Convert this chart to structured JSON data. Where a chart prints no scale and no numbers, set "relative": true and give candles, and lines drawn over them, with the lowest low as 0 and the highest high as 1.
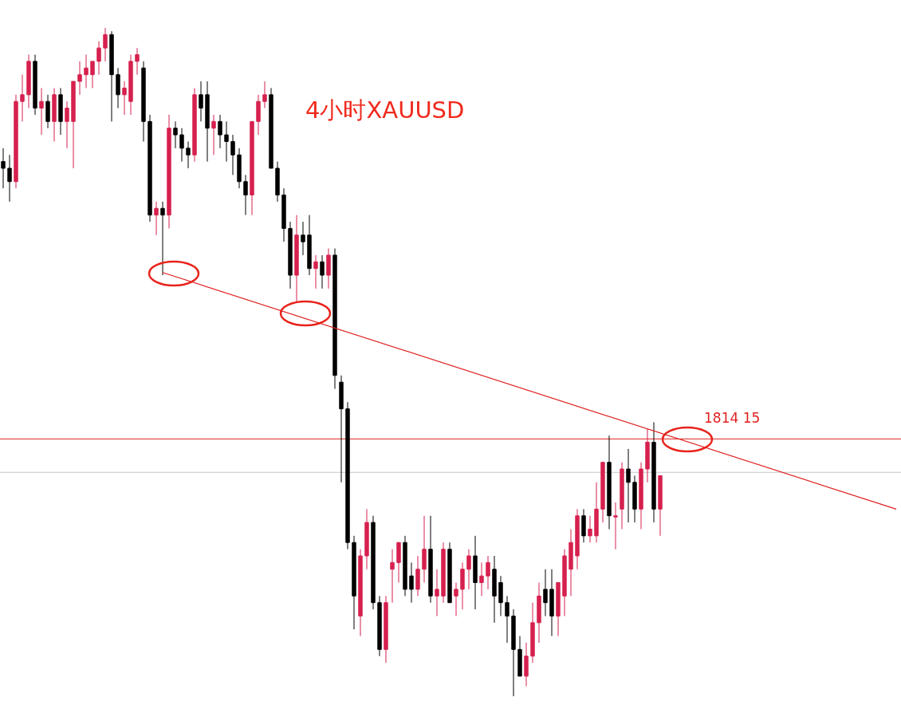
{
  "chart_data": {
    "type": "candlestick",
    "title": "4小时XAUUSD",
    "relative": true,
    "categories": [
      null,
      null,
      null,
      null,
      null,
      null,
      null,
      null,
      null,
      null,
      null,
      null,
      null,
      null,
      null,
      null,
      null,
      null,
      null,
      null,
      null,
      null,
      null,
      null,
      null,
      null,
      null,
      null,
      null,
      null,
      null,
      null,
      null,
      null,
      null,
      null,
      null,
      null,
      null,
      null,
      null,
      null,
      null,
      null,
      null,
      null,
      null,
      null,
      null,
      null,
      null,
      null,
      null,
      null,
      null,
      null,
      null,
      null,
      null,
      null,
      null,
      null,
      null,
      null,
      null,
      null,
      null,
      null,
      null,
      null,
      null,
      null,
      null,
      null,
      null,
      null,
      null,
      null,
      null,
      null,
      null,
      null,
      null,
      null,
      null,
      null,
      null,
      null,
      null,
      null,
      null,
      null,
      null,
      null,
      null,
      null,
      null,
      null,
      null,
      null,
      null,
      null,
      null,
      null,
      null,
      null,
      null,
      null,
      null,
      null,
      null,
      null,
      null,
      null,
      null,
      null,
      null,
      null,
      null,
      null,
      null,
      null,
      null,
      null,
      null,
      null,
      null,
      null,
      null,
      null,
      null,
      null,
      null,
      null,
      null,
      null,
      null,
      null,
      null,
      null,
      null
    ],
    "annotations": [
      "1814 15"
    ],
    "series": [
      {
        "colors": [
          "#000000",
          "#000000",
          "#d6204e",
          "#d6204e",
          "#d6204e",
          "#000000",
          "#d6204e",
          "#000000",
          "#d6204e",
          "#000000",
          "#d6204e",
          "#d6204e",
          "#d6204e",
          "#d6204e",
          "#d6204e",
          "#d6204e",
          "#d6204e",
          "#000000",
          "#000000",
          "#d6204e",
          "#d6204e",
          "#d6204e",
          "#000000",
          "#000000",
          "#d6204e",
          "#000000",
          "#d6204e",
          "#000000",
          "#000000",
          "#000000",
          "#d6204e",
          "#000000",
          "#000000",
          "#d6204e",
          "#000000",
          "#000000",
          "#000000",
          "#000000",
          "#000000",
          "#d6204e",
          "#d6204e",
          "#d6204e",
          "#000000",
          "#000000",
          "#000000",
          "#000000",
          "#d6204e",
          "#000000",
          "#000000",
          "#d6204e",
          "#000000",
          "#d6204e",
          "#000000",
          "#000000",
          "#000000",
          "#000000",
          "#d6204e",
          "#d6204e",
          "#000000",
          "#000000",
          "#d6204e",
          "#d6204e",
          "#d6204e",
          "#000000",
          "#000000",
          "#d6204e",
          "#d6204e",
          "#000000",
          "#d6204e",
          "#d6204e",
          "#000000",
          "#d6204e",
          "#d6204e",
          "#d6204e",
          "#000000",
          "#d6204e",
          "#d6204e",
          "#000000",
          "#000000",
          "#000000",
          "#000000",
          "#000000",
          "#d6204e",
          "#d6204e",
          "#d6204e",
          "#000000",
          "#000000",
          "#d6204e",
          "#d6204e",
          "#d6204e",
          "#d6204e",
          "#000000",
          "#d6204e",
          "#d6204e",
          "#d6204e",
          "#000000",
          "#d6204e",
          "#d6204e",
          "#000000",
          "#000000",
          "#d6204e",
          "#d6204e",
          "#000000",
          "#d6204e",
          null,
          null,
          null,
          null,
          null,
          null,
          null,
          null,
          null,
          null,
          null,
          null,
          null,
          null,
          null,
          null,
          null,
          null,
          null,
          null,
          null,
          null,
          null,
          null,
          null,
          null,
          null,
          null,
          null,
          null,
          null,
          null,
          null,
          null,
          null,
          null,
          null
        ],
        "ohlc": [
          [
            0.8,
            0.82,
            0.76,
            0.79
          ],
          [
            0.79,
            0.81,
            0.74,
            0.77
          ],
          [
            0.77,
            0.9,
            0.76,
            0.89
          ],
          [
            0.89,
            0.93,
            0.86,
            0.9
          ],
          [
            0.9,
            0.96,
            0.88,
            0.95
          ],
          [
            0.95,
            0.96,
            0.87,
            0.88
          ],
          [
            0.88,
            0.91,
            0.84,
            0.89
          ],
          [
            0.89,
            0.9,
            0.85,
            0.86
          ],
          [
            0.86,
            0.91,
            0.83,
            0.9
          ],
          [
            0.9,
            0.91,
            0.84,
            0.86
          ],
          [
            0.86,
            0.89,
            0.82,
            0.88
          ],
          [
            0.86,
            0.92,
            0.79,
            0.92
          ],
          [
            0.92,
            0.95,
            0.9,
            0.93
          ],
          [
            0.93,
            0.96,
            0.91,
            0.94
          ],
          [
            0.93,
            0.95,
            0.91,
            0.95
          ],
          [
            0.95,
            0.98,
            0.93,
            0.97
          ],
          [
            0.97,
            1.0,
            0.95,
            0.99
          ],
          [
            0.99,
            0.995,
            0.86,
            0.93
          ],
          [
            0.93,
            0.94,
            0.88,
            0.9
          ],
          [
            0.9,
            0.92,
            0.87,
            0.91
          ],
          [
            0.89,
            0.96,
            0.87,
            0.95
          ],
          [
            0.95,
            0.97,
            0.93,
            0.96
          ],
          [
            0.94,
            0.95,
            0.83,
            0.86
          ],
          [
            0.86,
            0.87,
            0.71,
            0.72
          ],
          [
            0.72,
            0.74,
            0.69,
            0.73
          ],
          [
            0.73,
            0.74,
            0.63,
            0.72
          ],
          [
            0.72,
            0.87,
            0.7,
            0.85
          ],
          [
            0.85,
            0.86,
            0.82,
            0.84
          ],
          [
            0.84,
            0.85,
            0.8,
            0.82
          ],
          [
            0.82,
            0.83,
            0.79,
            0.81
          ],
          [
            0.81,
            0.91,
            0.8,
            0.9
          ],
          [
            0.9,
            0.92,
            0.86,
            0.88
          ],
          [
            0.9,
            0.92,
            0.8,
            0.85
          ],
          [
            0.85,
            0.87,
            0.81,
            0.86
          ],
          [
            0.86,
            0.87,
            0.82,
            0.84
          ],
          [
            0.84,
            0.86,
            0.8,
            0.83
          ],
          [
            0.83,
            0.84,
            0.78,
            0.81
          ],
          [
            0.81,
            0.82,
            0.76,
            0.77
          ],
          [
            0.77,
            0.78,
            0.72,
            0.75
          ],
          [
            0.75,
            0.86,
            0.72,
            0.86
          ],
          [
            0.86,
            0.9,
            0.84,
            0.89
          ],
          [
            0.89,
            0.92,
            0.88,
            0.9
          ],
          [
            0.9,
            0.91,
            0.79,
            0.79
          ],
          [
            0.79,
            0.8,
            0.74,
            0.75
          ],
          [
            0.75,
            0.76,
            0.68,
            0.7
          ],
          [
            0.7,
            0.71,
            0.61,
            0.63
          ],
          [
            0.63,
            0.72,
            0.59,
            0.69
          ],
          [
            0.69,
            0.71,
            0.66,
            0.68
          ],
          [
            0.69,
            0.72,
            0.63,
            0.64
          ],
          [
            0.64,
            0.66,
            0.61,
            0.65
          ],
          [
            0.65,
            0.66,
            0.61,
            0.63
          ],
          [
            0.63,
            0.67,
            0.61,
            0.66
          ],
          [
            0.66,
            0.67,
            0.46,
            0.48
          ],
          [
            0.47,
            0.48,
            0.32,
            0.43
          ],
          [
            0.43,
            0.44,
            0.22,
            0.23
          ],
          [
            0.23,
            0.24,
            0.1,
            0.15
          ],
          [
            0.12,
            0.22,
            0.09,
            0.21
          ],
          [
            0.21,
            0.28,
            0.19,
            0.26
          ],
          [
            0.26,
            0.27,
            0.13,
            0.14
          ],
          [
            0.14,
            0.15,
            0.06,
            0.07
          ],
          [
            0.07,
            0.15,
            0.05,
            0.14
          ],
          [
            0.19,
            0.22,
            0.14,
            0.2
          ],
          [
            0.2,
            0.23,
            0.17,
            0.23
          ],
          [
            0.23,
            0.24,
            0.15,
            0.16
          ],
          [
            0.18,
            0.2,
            0.14,
            0.16
          ],
          [
            0.16,
            0.21,
            0.15,
            0.19
          ],
          [
            0.19,
            0.27,
            0.17,
            0.22
          ],
          [
            0.22,
            0.27,
            0.14,
            0.15
          ],
          [
            0.15,
            0.19,
            0.12,
            0.16
          ],
          [
            0.15,
            0.23,
            0.14,
            0.22
          ],
          [
            0.22,
            0.23,
            0.14,
            0.14
          ],
          [
            0.15,
            0.17,
            0.12,
            0.16
          ],
          [
            0.16,
            0.2,
            0.13,
            0.19
          ],
          [
            0.19,
            0.22,
            0.16,
            0.21
          ],
          [
            0.21,
            0.24,
            0.13,
            0.17
          ],
          [
            0.17,
            0.2,
            0.15,
            0.18
          ],
          [
            0.18,
            0.21,
            0.16,
            0.2
          ],
          [
            0.19,
            0.21,
            0.11,
            0.15
          ],
          [
            0.17,
            0.18,
            0.12,
            0.14
          ],
          [
            0.14,
            0.15,
            0.08,
            0.12
          ],
          [
            0.12,
            0.13,
            0.0,
            0.07
          ],
          [
            0.07,
            0.09,
            0.03,
            0.03
          ],
          [
            0.03,
            0.08,
            0.015,
            0.06
          ],
          [
            0.06,
            0.14,
            0.05,
            0.11
          ],
          [
            0.11,
            0.17,
            0.08,
            0.15
          ],
          [
            0.16,
            0.19,
            0.12,
            0.14
          ],
          [
            0.16,
            0.19,
            0.09,
            0.12
          ],
          [
            0.12,
            0.17,
            0.09,
            0.17
          ],
          [
            0.15,
            0.22,
            0.12,
            0.21
          ],
          [
            0.19,
            0.25,
            0.15,
            0.23
          ],
          [
            0.21,
            0.28,
            0.19,
            0.27
          ],
          [
            0.27,
            0.28,
            0.23,
            0.24
          ],
          [
            0.24,
            0.27,
            0.23,
            0.25
          ],
          [
            0.24,
            0.32,
            0.23,
            0.28
          ],
          [
            0.28,
            0.35,
            0.26,
            0.35
          ],
          [
            0.35,
            0.39,
            0.25,
            0.27
          ],
          [
            0.27,
            0.29,
            0.22,
            0.27
          ],
          [
            0.28,
            0.35,
            0.25,
            0.34
          ],
          [
            0.34,
            0.37,
            0.26,
            0.32
          ],
          [
            0.32,
            0.33,
            0.26,
            0.28
          ],
          [
            0.28,
            0.35,
            0.25,
            0.34
          ],
          [
            0.34,
            0.4,
            0.32,
            0.38
          ],
          [
            0.38,
            0.41,
            0.26,
            0.28
          ],
          [
            0.28,
            0.33,
            0.24,
            0.33
          ],
          null,
          null,
          null,
          null,
          null,
          null,
          null,
          null,
          null,
          null,
          null,
          null,
          null,
          null,
          null,
          null,
          null,
          null,
          null,
          null,
          null,
          null,
          null,
          null,
          null,
          null,
          null,
          null,
          null,
          null,
          null,
          null,
          null,
          null,
          null,
          null,
          null
        ]
      },
      {
        "type": "line",
        "color": "#e02020",
        "values": [
          null,
          null,
          null,
          null,
          null,
          null,
          null,
          null,
          null,
          null,
          null,
          null,
          null,
          null,
          null,
          null,
          null,
          null,
          null,
          null,
          null,
          null,
          null,
          null,
          null,
          0.634,
          null,
          null,
          null,
          null,
          null,
          null,
          null,
          null,
          null,
          null,
          null,
          null,
          null,
          null,
          null,
          null,
          null,
          null,
          null,
          null,
          null,
          null,
          null,
          null,
          null,
          null,
          null,
          null,
          null,
          null,
          null,
          null,
          null,
          null,
          null,
          null,
          null,
          null,
          null,
          null,
          null,
          null,
          null,
          null,
          null,
          null,
          null,
          null,
          null,
          null,
          null,
          null,
          null,
          null,
          null,
          null,
          null,
          null,
          null,
          null,
          null,
          null,
          null,
          null,
          null,
          null,
          null,
          null,
          null,
          null,
          null,
          null,
          null,
          null,
          null,
          null,
          null,
          null,
          null,
          null,
          null,
          null,
          null,
          null,
          null,
          null,
          null,
          null,
          null,
          null,
          null,
          null,
          null,
          null,
          null,
          null,
          null,
          null,
          null,
          null,
          null,
          null,
          null,
          null,
          null,
          null,
          null,
          null,
          null,
          null,
          null,
          null,
          null,
          null,
          0.28
        ]
      }
    ],
    "marker": "none",
    "line_style": "solid",
    "ref_lines": [
      {
        "axis": "y",
        "value": 0.385,
        "color": "#e02020"
      },
      {
        "axis": "y",
        "value": 0.335,
        "color": "#c8c8c8"
      }
    ]
  }
}
